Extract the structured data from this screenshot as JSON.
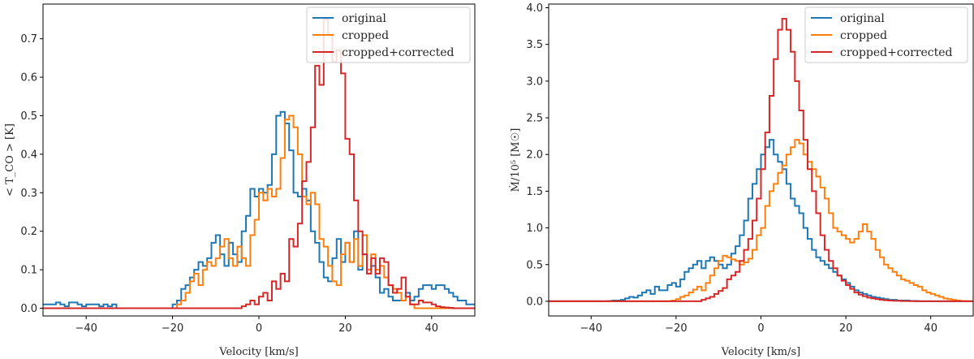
{
  "chart_data": [
    {
      "type": "line",
      "drawstyle": "steps",
      "title": "",
      "xlabel": "Velocity [km/s]",
      "ylabel": "< T_CO > [K]",
      "xlim": [
        -50,
        50
      ],
      "ylim": [
        -0.02,
        0.79
      ],
      "xticks": [
        -40,
        -20,
        0,
        20,
        40
      ],
      "yticks": [
        0.0,
        0.1,
        0.2,
        0.3,
        0.4,
        0.5,
        0.6,
        0.7
      ],
      "xtick_labels": [
        "−40",
        "−20",
        "0",
        "20",
        "40"
      ],
      "ytick_labels": [
        "0.0",
        "0.1",
        "0.2",
        "0.3",
        "0.4",
        "0.5",
        "0.6",
        "0.7"
      ],
      "legend_position": "top-right",
      "series": [
        {
          "name": "original",
          "color": "#1f77b4",
          "x0": -50,
          "dx": 1,
          "values": [
            0.01,
            0.01,
            0.01,
            0.015,
            0.01,
            0.005,
            0.015,
            0.015,
            0.01,
            0.005,
            0.01,
            0.01,
            0.01,
            0.005,
            0.01,
            0.005,
            0.01,
            0,
            0,
            0,
            0,
            0,
            0,
            0,
            0,
            0,
            0,
            0,
            0,
            0,
            0.01,
            0.02,
            0.05,
            0.06,
            0.08,
            0.1,
            0.12,
            0.11,
            0.13,
            0.17,
            0.19,
            0.14,
            0.11,
            0.17,
            0.14,
            0.12,
            0.2,
            0.24,
            0.31,
            0.29,
            0.31,
            0.3,
            0.32,
            0.4,
            0.5,
            0.51,
            0.48,
            0.41,
            0.3,
            0.29,
            0.31,
            0.28,
            0.2,
            0.17,
            0.12,
            0.08,
            0.07,
            0.13,
            0.18,
            0.12,
            0.17,
            0.12,
            0.2,
            0.1,
            0.14,
            0.1,
            0.11,
            0.08,
            0.04,
            0.05,
            0.03,
            0.02,
            0.02,
            0.02,
            0.04,
            0.02,
            0.03,
            0.05,
            0.06,
            0.06,
            0.05,
            0.06,
            0.06,
            0.05,
            0.04,
            0.03,
            0.02,
            0.02,
            0.01,
            0.01
          ]
        },
        {
          "name": "cropped",
          "color": "#ff7f0e",
          "x0": -50,
          "dx": 1,
          "values": [
            0,
            0,
            0,
            0,
            0,
            0,
            0,
            0,
            0,
            0,
            0,
            0,
            0,
            0,
            0,
            0,
            0,
            0,
            0,
            0,
            0,
            0,
            0,
            0,
            0,
            0,
            0,
            0,
            0,
            0,
            0,
            0.01,
            0.02,
            0.04,
            0.07,
            0.09,
            0.06,
            0.1,
            0.12,
            0.11,
            0.13,
            0.16,
            0.18,
            0.13,
            0.11,
            0.16,
            0.13,
            0.11,
            0.19,
            0.23,
            0.3,
            0.28,
            0.31,
            0.29,
            0.31,
            0.39,
            0.49,
            0.5,
            0.47,
            0.4,
            0.29,
            0.27,
            0.3,
            0.27,
            0.18,
            0.16,
            0.11,
            0.07,
            0.06,
            0.14,
            0.17,
            0.12,
            0.18,
            0.11,
            0.19,
            0.1,
            0.14,
            0.1,
            0.11,
            0.08,
            0.06,
            0.05,
            0.04,
            0.02,
            0.03,
            0.01,
            0,
            0,
            0,
            0,
            0,
            0,
            0,
            0,
            0,
            0,
            0,
            0,
            0,
            0
          ]
        },
        {
          "name": "cropped+corrected",
          "color": "#d62728",
          "x0": -50,
          "dx": 1,
          "values": [
            0,
            0,
            0,
            0,
            0,
            0,
            0,
            0,
            0,
            0,
            0,
            0,
            0,
            0,
            0,
            0,
            0,
            0,
            0,
            0,
            0,
            0,
            0,
            0,
            0,
            0,
            0,
            0,
            0,
            0,
            0,
            0,
            0,
            0,
            0,
            0,
            0,
            0,
            0,
            0,
            0,
            0,
            0,
            0,
            0,
            0,
            0.005,
            0.01,
            0.02,
            0.01,
            0.03,
            0.04,
            0.02,
            0.07,
            0.05,
            0.09,
            0.07,
            0.18,
            0.16,
            0.22,
            0.33,
            0.38,
            0.47,
            0.63,
            0.58,
            0.75,
            0.71,
            0.64,
            0.67,
            0.61,
            0.44,
            0.4,
            0.28,
            0.2,
            0.14,
            0.09,
            0.13,
            0.09,
            0.13,
            0.12,
            0.06,
            0.04,
            0.05,
            0.08,
            0.03,
            0.01,
            0.01,
            0.02,
            0.015,
            0.015,
            0.01,
            0.005,
            0.003,
            0.002,
            0.001,
            0,
            0,
            0,
            0,
            0
          ]
        }
      ]
    },
    {
      "type": "line",
      "drawstyle": "steps",
      "title": "",
      "xlabel": "Velocity [km/s]",
      "ylabel": "Ṁ/10⁵ [M☉]",
      "xlim": [
        -50,
        50
      ],
      "ylim": [
        -0.2,
        4.05
      ],
      "xticks": [
        -40,
        -20,
        0,
        20,
        40
      ],
      "yticks": [
        0.0,
        0.5,
        1.0,
        1.5,
        2.0,
        2.5,
        3.0,
        3.5,
        4.0
      ],
      "xtick_labels": [
        "−40",
        "−20",
        "0",
        "20",
        "40"
      ],
      "ytick_labels": [
        "0.0",
        "0.5",
        "1.0",
        "1.5",
        "2.0",
        "2.5",
        "3.0",
        "3.5",
        "4.0"
      ],
      "legend_position": "top-right",
      "series": [
        {
          "name": "original",
          "color": "#1f77b4",
          "x0": -50,
          "dx": 1,
          "values": [
            0,
            0,
            0,
            0,
            0,
            0,
            0,
            0,
            0,
            0,
            0,
            0,
            0,
            0,
            0.005,
            0.01,
            0.01,
            0.02,
            0.04,
            0.06,
            0.05,
            0.08,
            0.12,
            0.15,
            0.1,
            0.2,
            0.15,
            0.15,
            0.22,
            0.25,
            0.2,
            0.3,
            0.4,
            0.45,
            0.5,
            0.55,
            0.45,
            0.55,
            0.6,
            0.55,
            0.5,
            0.45,
            0.5,
            0.65,
            0.75,
            0.9,
            1.1,
            1.4,
            1.6,
            1.8,
            2.0,
            2.1,
            2.2,
            2.0,
            1.9,
            1.8,
            1.6,
            1.4,
            1.3,
            1.2,
            1.0,
            0.85,
            0.7,
            0.6,
            0.55,
            0.5,
            0.45,
            0.4,
            0.35,
            0.3,
            0.25,
            0.2,
            0.15,
            0.12,
            0.1,
            0.08,
            0.06,
            0.05,
            0.04,
            0.03,
            0.02,
            0.02,
            0.01,
            0.01,
            0.01,
            0.005,
            0.005,
            0,
            0,
            0,
            0,
            0,
            0,
            0,
            0,
            0,
            0,
            0,
            0,
            0
          ]
        },
        {
          "name": "cropped",
          "color": "#ff7f0e",
          "x0": -50,
          "dx": 1,
          "values": [
            0,
            0,
            0,
            0,
            0,
            0,
            0,
            0,
            0,
            0,
            0,
            0,
            0,
            0,
            0,
            0,
            0,
            0,
            0,
            0,
            0,
            0,
            0,
            0,
            0,
            0,
            0,
            0,
            0,
            0.01,
            0.03,
            0.06,
            0.08,
            0.12,
            0.16,
            0.2,
            0.15,
            0.25,
            0.35,
            0.45,
            0.55,
            0.62,
            0.6,
            0.57,
            0.55,
            0.5,
            0.53,
            0.58,
            0.7,
            0.9,
            1.0,
            1.3,
            1.5,
            1.6,
            1.75,
            1.85,
            2.0,
            2.1,
            2.2,
            2.15,
            2.0,
            1.9,
            1.8,
            1.7,
            1.55,
            1.4,
            1.2,
            1.0,
            0.95,
            0.9,
            0.85,
            0.8,
            0.85,
            0.95,
            1.05,
            0.95,
            0.85,
            0.7,
            0.6,
            0.5,
            0.45,
            0.4,
            0.35,
            0.3,
            0.28,
            0.25,
            0.22,
            0.2,
            0.15,
            0.12,
            0.1,
            0.08,
            0.06,
            0.04,
            0.03,
            0.02,
            0.01,
            0.005,
            0,
            0
          ]
        },
        {
          "name": "cropped+corrected",
          "color": "#d62728",
          "x0": -50,
          "dx": 1,
          "values": [
            0,
            0,
            0,
            0,
            0,
            0,
            0,
            0,
            0,
            0,
            0,
            0,
            0,
            0,
            0,
            0,
            0,
            0,
            0,
            0,
            0,
            0,
            0,
            0,
            0,
            0,
            0,
            0,
            0,
            0,
            0,
            0,
            0,
            0,
            0,
            0,
            0.02,
            0.04,
            0.06,
            0.1,
            0.14,
            0.18,
            0.3,
            0.35,
            0.4,
            0.55,
            0.7,
            0.85,
            1.1,
            1.4,
            1.8,
            2.3,
            2.8,
            3.3,
            3.7,
            3.85,
            3.7,
            3.4,
            3.0,
            2.6,
            2.2,
            1.8,
            1.5,
            1.2,
            0.9,
            0.7,
            0.55,
            0.45,
            0.35,
            0.28,
            0.22,
            0.17,
            0.12,
            0.09,
            0.07,
            0.05,
            0.04,
            0.03,
            0.02,
            0.015,
            0.01,
            0.008,
            0.006,
            0.004,
            0.003,
            0.002,
            0.001,
            0,
            0,
            0,
            0,
            0,
            0,
            0,
            0,
            0,
            0,
            0,
            0,
            0
          ]
        }
      ]
    }
  ]
}
